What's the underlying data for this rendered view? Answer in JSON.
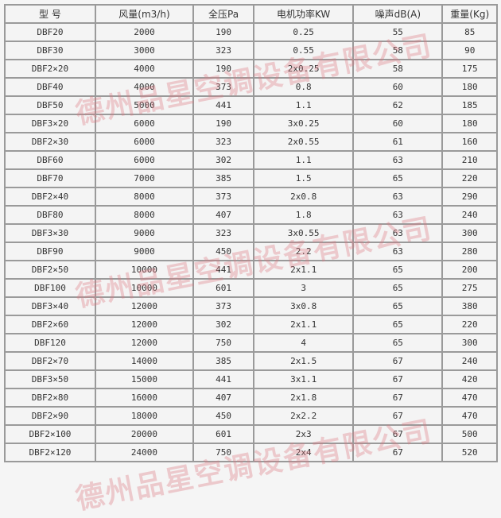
{
  "table": {
    "headers": [
      "型 号",
      "风量(m3/h)",
      "全压Pa",
      "电机功率KW",
      "噪声dB(A)",
      "重量(Kg)"
    ],
    "rows": [
      [
        "DBF20",
        "2000",
        "190",
        "0.25",
        "55",
        "85"
      ],
      [
        "DBF30",
        "3000",
        "323",
        "0.55",
        "58",
        "90"
      ],
      [
        "DBF2×20",
        "4000",
        "190",
        "2x0.25",
        "58",
        "175"
      ],
      [
        "DBF40",
        "4000",
        "373",
        "0.8",
        "60",
        "180"
      ],
      [
        "DBF50",
        "5000",
        "441",
        "1.1",
        "62",
        "185"
      ],
      [
        "DBF3×20",
        "6000",
        "190",
        "3x0.25",
        "60",
        "180"
      ],
      [
        "DBF2×30",
        "6000",
        "323",
        "2x0.55",
        "61",
        "160"
      ],
      [
        "DBF60",
        "6000",
        "302",
        "1.1",
        "63",
        "210"
      ],
      [
        "DBF70",
        "7000",
        "385",
        "1.5",
        "65",
        "220"
      ],
      [
        "DBF2×40",
        "8000",
        "373",
        "2x0.8",
        "63",
        "290"
      ],
      [
        "DBF80",
        "8000",
        "407",
        "1.8",
        "63",
        "240"
      ],
      [
        "DBF3×30",
        "9000",
        "323",
        "3x0.55",
        "63",
        "300"
      ],
      [
        "DBF90",
        "9000",
        "450",
        "2.2",
        "63",
        "280"
      ],
      [
        "DBF2×50",
        "10000",
        "441",
        "2x1.1",
        "65",
        "200"
      ],
      [
        "DBF100",
        "10000",
        "601",
        "3",
        "65",
        "275"
      ],
      [
        "DBF3×40",
        "12000",
        "373",
        "3x0.8",
        "65",
        "380"
      ],
      [
        "DBF2×60",
        "12000",
        "302",
        "2x1.1",
        "65",
        "220"
      ],
      [
        "DBF120",
        "12000",
        "750",
        "4",
        "65",
        "300"
      ],
      [
        "DBF2×70",
        "14000",
        "385",
        "2x1.5",
        "67",
        "240"
      ],
      [
        "DBF3×50",
        "15000",
        "441",
        "3x1.1",
        "67",
        "420"
      ],
      [
        "DBF2×80",
        "16000",
        "407",
        "2x1.8",
        "67",
        "470"
      ],
      [
        "DBF2×90",
        "18000",
        "450",
        "2x2.2",
        "67",
        "470"
      ],
      [
        "DBF2×100",
        "20000",
        "601",
        "2x3",
        "67",
        "500"
      ],
      [
        "DBF2×120",
        "24000",
        "750",
        "2x4",
        "67",
        "520"
      ]
    ]
  },
  "watermark": {
    "text": "德州品星空调设备有限公司",
    "color": "#dc7882"
  }
}
